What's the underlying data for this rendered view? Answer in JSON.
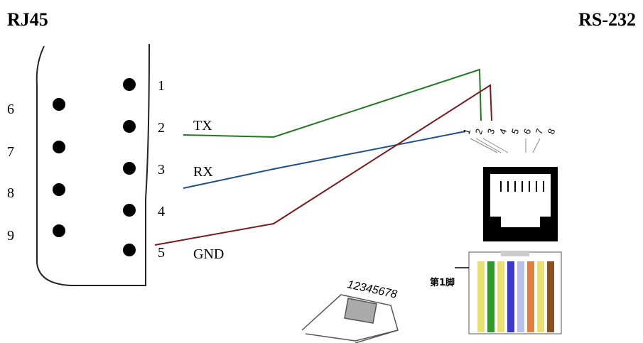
{
  "header": {
    "left": "RJ45",
    "right": "RS-232"
  },
  "db9": {
    "pins": [
      "1",
      "2",
      "3",
      "4",
      "5",
      "6",
      "7",
      "8",
      "9"
    ]
  },
  "signals": [
    "TX",
    "RX",
    "GND"
  ],
  "rj45": {
    "pins": [
      "1",
      "2",
      "3",
      "4",
      "5",
      "6",
      "7",
      "8"
    ]
  },
  "plug": {
    "label": "12345678",
    "pin1_label": "第1脚"
  }
}
